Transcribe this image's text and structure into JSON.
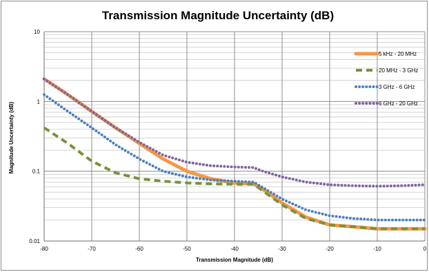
{
  "chart_data": {
    "type": "line",
    "title": "Transmission Magnitude Uncertainty (dB)",
    "xlabel": "Transmission Magnitude (dB)",
    "ylabel": "Magnitude Uncertainty (dB)",
    "xlim": [
      -80,
      0
    ],
    "ylim": [
      0.01,
      10
    ],
    "yscale": "log",
    "grid": true,
    "legend_position": "right",
    "x_ticks": [
      "-80",
      "-70",
      "-60",
      "-50",
      "-40",
      "-30",
      "-20",
      "-10",
      "0"
    ],
    "y_ticks": [
      "0.01",
      "0.1",
      "1",
      "10"
    ],
    "series": [
      {
        "name": "5 kHz - 20 MHz",
        "color": "#f79646",
        "style": "solid",
        "points": [
          [
            -80,
            2.1
          ],
          [
            -75,
            1.25
          ],
          [
            -70,
            0.72
          ],
          [
            -65,
            0.42
          ],
          [
            -60,
            0.25
          ],
          [
            -55,
            0.15
          ],
          [
            -50,
            0.1
          ],
          [
            -45,
            0.078
          ],
          [
            -40,
            0.068
          ],
          [
            -36,
            0.066
          ],
          [
            -34,
            0.055
          ],
          [
            -30,
            0.035
          ],
          [
            -25,
            0.022
          ],
          [
            -20,
            0.017
          ],
          [
            -15,
            0.016
          ],
          [
            -10,
            0.015
          ],
          [
            -5,
            0.015
          ],
          [
            0,
            0.015
          ]
        ]
      },
      {
        "name": "20 MHz - 3 GHz",
        "color": "#77933c",
        "style": "dashed",
        "points": [
          [
            -80,
            0.42
          ],
          [
            -75,
            0.25
          ],
          [
            -70,
            0.14
          ],
          [
            -65,
            0.095
          ],
          [
            -60,
            0.078
          ],
          [
            -55,
            0.072
          ],
          [
            -50,
            0.068
          ],
          [
            -45,
            0.066
          ],
          [
            -40,
            0.065
          ],
          [
            -36,
            0.065
          ],
          [
            -34,
            0.052
          ],
          [
            -30,
            0.033
          ],
          [
            -25,
            0.021
          ],
          [
            -20,
            0.017
          ],
          [
            -15,
            0.016
          ],
          [
            -10,
            0.015
          ],
          [
            -5,
            0.015
          ],
          [
            0,
            0.015
          ]
        ]
      },
      {
        "name": "3 GHz - 6 GHz",
        "color": "#4f81bd",
        "style": "dotted",
        "points": [
          [
            -80,
            1.25
          ],
          [
            -75,
            0.72
          ],
          [
            -70,
            0.42
          ],
          [
            -65,
            0.24
          ],
          [
            -60,
            0.15
          ],
          [
            -55,
            0.1
          ],
          [
            -50,
            0.083
          ],
          [
            -45,
            0.075
          ],
          [
            -40,
            0.072
          ],
          [
            -36,
            0.07
          ],
          [
            -34,
            0.058
          ],
          [
            -30,
            0.04
          ],
          [
            -25,
            0.028
          ],
          [
            -20,
            0.023
          ],
          [
            -15,
            0.021
          ],
          [
            -10,
            0.02
          ],
          [
            -5,
            0.02
          ],
          [
            0,
            0.02
          ]
        ]
      },
      {
        "name": "6 GHz - 20 GHz",
        "color": "#8064a2",
        "style": "dotted",
        "points": [
          [
            -80,
            2.1
          ],
          [
            -75,
            1.25
          ],
          [
            -70,
            0.72
          ],
          [
            -65,
            0.42
          ],
          [
            -60,
            0.26
          ],
          [
            -55,
            0.17
          ],
          [
            -50,
            0.135
          ],
          [
            -45,
            0.12
          ],
          [
            -40,
            0.115
          ],
          [
            -36,
            0.113
          ],
          [
            -34,
            0.1
          ],
          [
            -30,
            0.083
          ],
          [
            -25,
            0.07
          ],
          [
            -20,
            0.064
          ],
          [
            -15,
            0.062
          ],
          [
            -10,
            0.061
          ],
          [
            -5,
            0.062
          ],
          [
            0,
            0.064
          ]
        ]
      }
    ]
  }
}
